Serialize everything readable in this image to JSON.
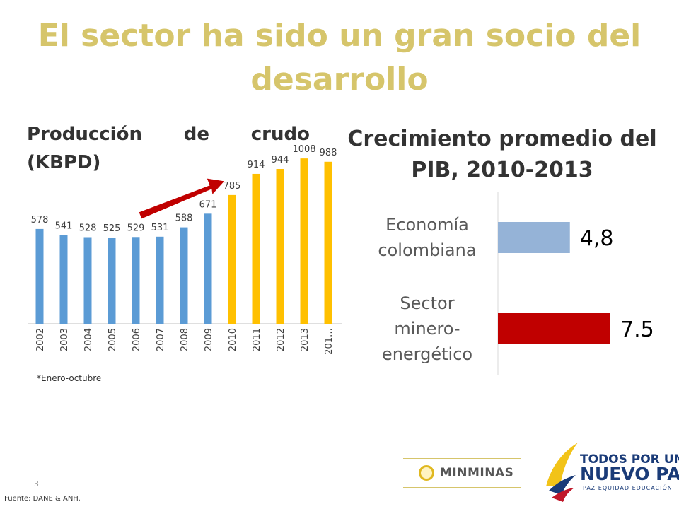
{
  "slide": {
    "title": "El sector ha sido un gran socio del desarrollo",
    "page_number": "3",
    "source": "Fuente: DANE & ANH."
  },
  "left_chart": {
    "heading_words": [
      "Producción",
      "de",
      "crudo"
    ],
    "heading_line2": "(KBPD)",
    "footnote": "*Enero-octubre"
  },
  "right_chart": {
    "heading_line1": "Crecimiento promedio del",
    "heading_line2": "PIB, 2010-2013"
  },
  "logos": {
    "minminas": "MINMINAS",
    "gov_line1": "TODOS POR UN",
    "gov_line2": "NUEVO PAÍS",
    "gov_line3": "PAZ  EQUIDAD  EDUCACIÓN"
  },
  "colors": {
    "title": "#d6c56b",
    "bar_blue": "#5b9bd5",
    "bar_gold": "#ffc000",
    "bar_light_blue": "#95b3d7",
    "bar_red": "#c00000",
    "arrow": "#c00000"
  },
  "chart_data": [
    {
      "type": "bar",
      "title": "Producción de crudo (KBPD)",
      "categories": [
        "2002",
        "2003",
        "2004",
        "2005",
        "2006",
        "2007",
        "2008",
        "2009",
        "2010",
        "2011",
        "2012",
        "2013",
        "201…"
      ],
      "values": [
        578,
        541,
        528,
        525,
        529,
        531,
        588,
        671,
        785,
        914,
        944,
        1008,
        988
      ],
      "value_labels": [
        "578",
        "541",
        "528",
        "525",
        "529",
        "531",
        "588",
        "671",
        "785",
        "914",
        "944",
        "1008",
        "988"
      ],
      "highlight_from_index": 8,
      "ylim": [
        0,
        1100
      ],
      "grid": false,
      "legend": "none"
    },
    {
      "type": "bar",
      "orientation": "horizontal",
      "title": "Crecimiento promedio del PIB, 2010-2013",
      "categories": [
        [
          "Economía",
          "colombiana"
        ],
        [
          "Sector",
          "minero-",
          "energético"
        ]
      ],
      "values": [
        4.8,
        7.5
      ],
      "value_labels": [
        "4,8",
        "7.5"
      ],
      "xlim": [
        0,
        8
      ],
      "grid": false,
      "legend": "none"
    }
  ]
}
